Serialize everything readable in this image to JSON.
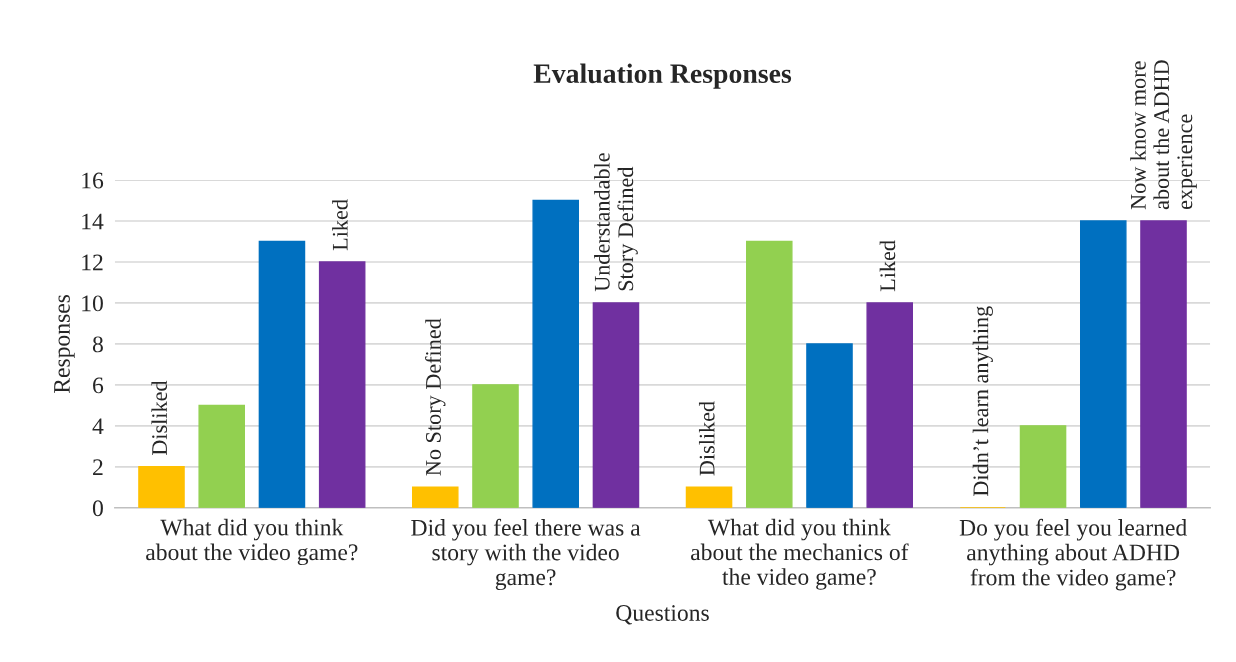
{
  "chart_data": {
    "type": "bar",
    "title": "Evaluation Responses",
    "xlabel": "Questions",
    "ylabel": "Responses",
    "categories": [
      "What did you think\nabout the video game?",
      "Did you feel there was a\nstory with the video\ngame?",
      "What did you think\nabout the mechanics of\nthe video game?",
      "Do you feel you learned\nanything about ADHD\nfrom the video game?"
    ],
    "series": [
      {
        "color": "#ffc000",
        "values": [
          2,
          1,
          1,
          0
        ]
      },
      {
        "color": "#92d050",
        "values": [
          5,
          6,
          13,
          4
        ]
      },
      {
        "color": "#0070c0",
        "values": [
          13,
          15,
          8,
          14
        ]
      },
      {
        "color": "#7030a0",
        "values": [
          12,
          10,
          10,
          14
        ]
      }
    ],
    "ylim": [
      0,
      16
    ],
    "yticks": [
      0,
      2,
      4,
      6,
      8,
      10,
      12,
      14,
      16
    ],
    "grid": "y",
    "legend": false,
    "annotations": [
      "Disliked",
      "Liked",
      "No Story Defined",
      "Understandable\nStory Defined",
      "Disliked",
      "Liked",
      "Didn’t learn anything",
      "Now know more\nabout the ADHD\nexperience"
    ]
  }
}
